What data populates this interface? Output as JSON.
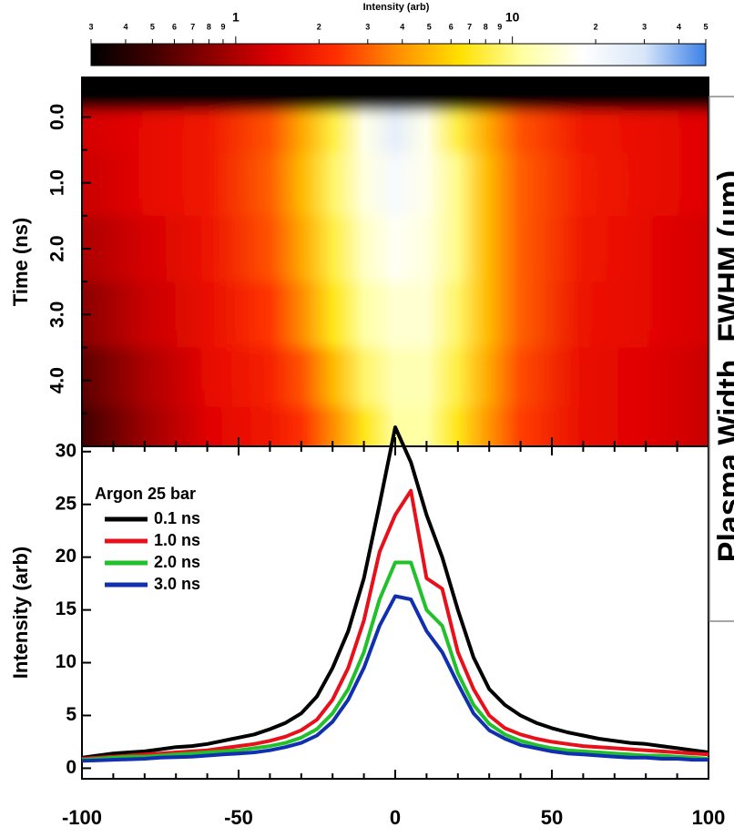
{
  "chart_data": [
    {
      "type": "colorbar",
      "title": "Intensity (arb)",
      "xlim": [
        0.3,
        50
      ],
      "log_scale": true,
      "colors": [
        "#000000",
        "#400000",
        "#900000",
        "#e00000",
        "#ff3000",
        "#ff9000",
        "#ffe000",
        "#ffffa0",
        "#ffffff",
        "#d8e6f8",
        "#3a80e8"
      ],
      "xticks": [
        {
          "value": 0.3,
          "label": "3"
        },
        {
          "value": 0.4,
          "label": "4"
        },
        {
          "value": 0.5,
          "label": "5"
        },
        {
          "value": 0.6,
          "label": "6"
        },
        {
          "value": 0.7,
          "label": "7"
        },
        {
          "value": 0.8,
          "label": "8"
        },
        {
          "value": 0.9,
          "label": "9"
        },
        1,
        2,
        3,
        4,
        5,
        6,
        7,
        8,
        9,
        10,
        {
          "value": 20,
          "label": "2"
        },
        {
          "value": 30,
          "label": "3"
        },
        {
          "value": 40,
          "label": "4"
        },
        {
          "value": 50,
          "label": "5"
        }
      ]
    },
    {
      "type": "heatmap",
      "ylabel": "Time (ns)",
      "x": [
        -100,
        -80,
        -60,
        -40,
        -30,
        -20,
        -10,
        0,
        10,
        20,
        30,
        40,
        60,
        80,
        100
      ],
      "y": [
        -0.3,
        0.1,
        1.0,
        2.0,
        3.0,
        4.0,
        4.8
      ],
      "values": [
        [
          0.3,
          0.3,
          0.3,
          0.3,
          0.3,
          0.3,
          0.3,
          0.3,
          0.3,
          0.3,
          0.3,
          0.3,
          0.3,
          0.3,
          0.3
        ],
        [
          1.3,
          1.5,
          1.8,
          2.8,
          4.5,
          8,
          16,
          25,
          16,
          8,
          4.5,
          2.8,
          1.8,
          1.6,
          1.4
        ],
        [
          1.2,
          1.5,
          1.8,
          3,
          5,
          9,
          15,
          20,
          16,
          10,
          5,
          3,
          1.9,
          1.6,
          1.4
        ],
        [
          1.0,
          1.3,
          1.7,
          2.8,
          4.5,
          8,
          13,
          17,
          15,
          10,
          5,
          3,
          1.8,
          1.5,
          1.3
        ],
        [
          0.8,
          1.2,
          1.6,
          2.4,
          3.8,
          7,
          11,
          14,
          14,
          9,
          5,
          3,
          1.7,
          1.5,
          1.3
        ],
        [
          0.6,
          1.0,
          1.5,
          2.0,
          2.8,
          5,
          9,
          12,
          12,
          8,
          4.5,
          2.7,
          1.6,
          1.4,
          1.2
        ],
        [
          0.5,
          0.9,
          1.4,
          1.8,
          2.3,
          3.8,
          7,
          11,
          11,
          7,
          4,
          2.5,
          1.6,
          1.4,
          1.2
        ]
      ],
      "xlim": [
        -100,
        100
      ],
      "ylim": [
        -0.6,
        5.0
      ],
      "y_inverted": true,
      "xticks": [
        -100,
        -90,
        -80,
        -70,
        -60,
        -50,
        -40,
        -30,
        -20,
        -10,
        0,
        10,
        20,
        30,
        40,
        50,
        60,
        70,
        80,
        90,
        100
      ],
      "yticks": [
        {
          "value": 0,
          "label": "0.0"
        },
        {
          "value": 1,
          "label": "1.0"
        },
        {
          "value": 2,
          "label": "2.0"
        },
        {
          "value": 3,
          "label": "3.0"
        },
        {
          "value": 4,
          "label": "4.0"
        }
      ],
      "yticks_minor": [
        -0.5,
        0.5,
        1.5,
        2.5,
        3.5,
        4.5
      ]
    },
    {
      "type": "line",
      "ylabel": "Intensity (arb)",
      "legend_title": "Argon 25 bar",
      "legend": "upper left",
      "x": [
        -100,
        -95,
        -90,
        -85,
        -80,
        -75,
        -70,
        -65,
        -60,
        -55,
        -50,
        -45,
        -40,
        -35,
        -30,
        -25,
        -20,
        -15,
        -10,
        -5,
        0,
        5,
        10,
        15,
        20,
        25,
        30,
        35,
        40,
        45,
        50,
        55,
        60,
        65,
        70,
        75,
        80,
        85,
        90,
        95,
        100
      ],
      "series": [
        {
          "name": "0.1 ns",
          "color": "#000000",
          "values": [
            1.0,
            1.2,
            1.4,
            1.5,
            1.6,
            1.8,
            2.0,
            2.1,
            2.3,
            2.6,
            2.9,
            3.2,
            3.7,
            4.3,
            5.2,
            6.8,
            9.5,
            13,
            18,
            25,
            32.3,
            29,
            24,
            20,
            15,
            10.5,
            7.5,
            6.0,
            5.0,
            4.3,
            3.8,
            3.4,
            3.1,
            2.8,
            2.6,
            2.4,
            2.3,
            2.1,
            1.9,
            1.7,
            1.5
          ]
        },
        {
          "name": "1.0 ns",
          "color": "#e8101a",
          "values": [
            0.9,
            1.0,
            1.1,
            1.2,
            1.3,
            1.4,
            1.5,
            1.6,
            1.7,
            1.9,
            2.1,
            2.3,
            2.6,
            3.0,
            3.6,
            4.6,
            6.5,
            9.5,
            14,
            20.5,
            24,
            26.3,
            18,
            17,
            11,
            7.5,
            5.0,
            3.8,
            3.2,
            2.8,
            2.5,
            2.3,
            2.1,
            2.0,
            1.9,
            1.8,
            1.7,
            1.6,
            1.5,
            1.4,
            1.3
          ]
        },
        {
          "name": "2.0 ns",
          "color": "#22c02a",
          "values": [
            0.8,
            0.9,
            1.0,
            1.1,
            1.1,
            1.2,
            1.3,
            1.4,
            1.5,
            1.6,
            1.7,
            1.9,
            2.1,
            2.4,
            2.9,
            3.7,
            5.2,
            7.5,
            11,
            16,
            19.5,
            19.5,
            15,
            13.5,
            9,
            6,
            4.2,
            3.2,
            2.6,
            2.2,
            1.9,
            1.7,
            1.6,
            1.5,
            1.4,
            1.3,
            1.2,
            1.2,
            1.1,
            1.0,
            0.9
          ]
        },
        {
          "name": "3.0 ns",
          "color": "#1030b0",
          "values": [
            0.7,
            0.75,
            0.8,
            0.85,
            0.9,
            1.0,
            1.05,
            1.1,
            1.2,
            1.3,
            1.4,
            1.5,
            1.7,
            2.0,
            2.4,
            3.1,
            4.4,
            6.5,
            9.5,
            13.5,
            16.3,
            16,
            13,
            11,
            8,
            5.2,
            3.6,
            2.8,
            2.2,
            1.9,
            1.6,
            1.4,
            1.3,
            1.2,
            1.1,
            1.0,
            1.0,
            0.9,
            0.9,
            0.8,
            0.8
          ]
        }
      ],
      "xlim": [
        -100,
        100
      ],
      "ylim": [
        -1,
        30.5
      ],
      "xticks": [
        -100,
        -50,
        0,
        50,
        100
      ],
      "xticks_minor": [
        -90,
        -80,
        -70,
        -60,
        -40,
        -30,
        -20,
        -10,
        10,
        20,
        30,
        40,
        60,
        70,
        80,
        90
      ],
      "yticks": [
        0,
        5,
        10,
        15,
        20,
        25,
        30
      ]
    },
    {
      "type": "cropped-panel",
      "ylabel": "Plasma Width, FWHM (μm)"
    }
  ]
}
